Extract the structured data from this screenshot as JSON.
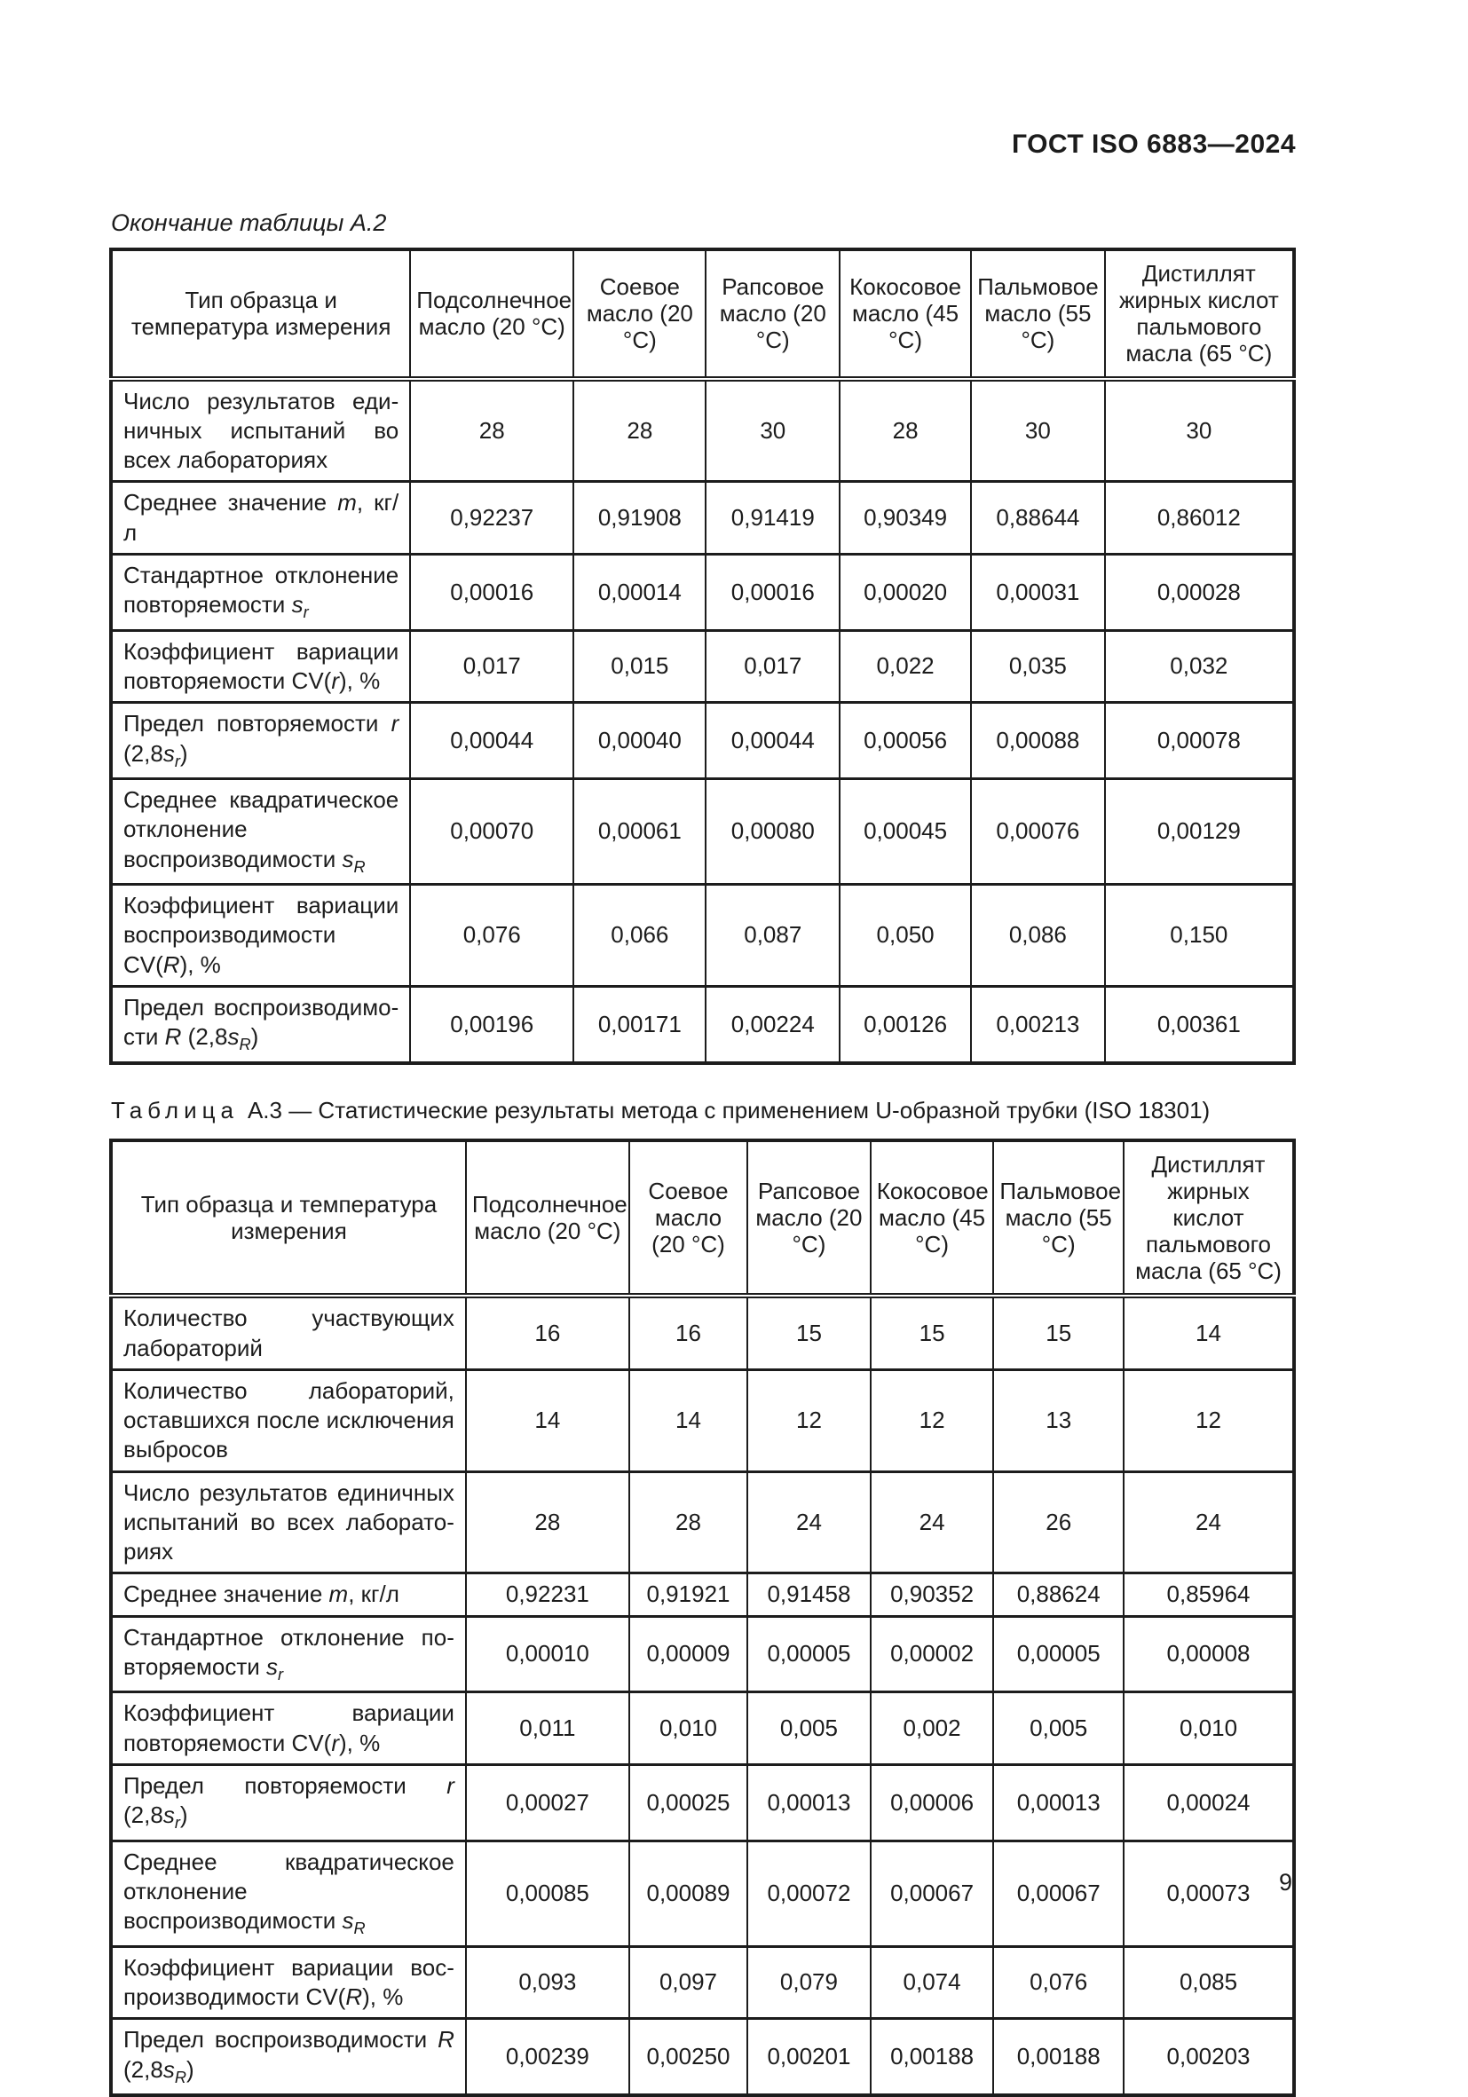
{
  "page": {
    "doc_code": "ГОСТ ISO 6883—2024",
    "page_number": "9"
  },
  "table_a2": {
    "continuation_caption": "Окончание таблицы А.2",
    "columns": [
      "Тип образца и температура измерения",
      "Подсолнечное масло (20 °С)",
      "Соевое масло (20 °С)",
      "Рапсовое масло (20 °С)",
      "Кокосовое масло (45 °С)",
      "Пальмовое масло (55 °С)",
      "Дистиллят жирных кислот пальмового масла (65 °С)"
    ],
    "rows": [
      {
        "label": [
          {
            "t": "Число результатов еди­ничных испытаний во всех лабораториях"
          }
        ],
        "values": [
          "28",
          "28",
          "30",
          "28",
          "30",
          "30"
        ]
      },
      {
        "label": [
          {
            "t": "Среднее значение "
          },
          {
            "t": "m",
            "i": true
          },
          {
            "t": ", кг/л"
          }
        ],
        "values": [
          "0,92237",
          "0,91908",
          "0,91419",
          "0,90349",
          "0,88644",
          "0,86012"
        ]
      },
      {
        "label": [
          {
            "t": "Стандартное отклонение повторяемости "
          },
          {
            "t": "s",
            "i": true
          },
          {
            "t": "r",
            "i": true,
            "sub": true
          }
        ],
        "values": [
          "0,00016",
          "0,00014",
          "0,00016",
          "0,00020",
          "0,00031",
          "0,00028"
        ]
      },
      {
        "label": [
          {
            "t": "Коэффициент вариации повторяемости CV("
          },
          {
            "t": "r",
            "i": true
          },
          {
            "t": "), %"
          }
        ],
        "values": [
          "0,017",
          "0,015",
          "0,017",
          "0,022",
          "0,035",
          "0,032"
        ]
      },
      {
        "label": [
          {
            "t": "Предел повторяемости "
          },
          {
            "t": "r",
            "i": true
          },
          {
            "t": " (2,8"
          },
          {
            "t": "s",
            "i": true
          },
          {
            "t": "r",
            "i": true,
            "sub": true
          },
          {
            "t": ")"
          }
        ],
        "values": [
          "0,00044",
          "0,00040",
          "0,00044",
          "0,00056",
          "0,00088",
          "0,00078"
        ]
      },
      {
        "label": [
          {
            "t": "Среднее квадратическое отклонение воспроизводи­мости "
          },
          {
            "t": "s",
            "i": true
          },
          {
            "t": "R",
            "i": true,
            "sub": true
          }
        ],
        "values": [
          "0,00070",
          "0,00061",
          "0,00080",
          "0,00045",
          "0,00076",
          "0,00129"
        ]
      },
      {
        "label": [
          {
            "t": "Коэффициент вариа­ции воспроизводимости CV("
          },
          {
            "t": "R",
            "i": true
          },
          {
            "t": "), %"
          }
        ],
        "values": [
          "0,076",
          "0,066",
          "0,087",
          "0,050",
          "0,086",
          "0,150"
        ]
      },
      {
        "label": [
          {
            "t": "Предел воспроизводимо­сти "
          },
          {
            "t": "R",
            "i": true
          },
          {
            "t": " (2,8"
          },
          {
            "t": "s",
            "i": true
          },
          {
            "t": "R",
            "i": true,
            "sub": true
          },
          {
            "t": ")"
          }
        ],
        "values": [
          "0,00196",
          "0,00171",
          "0,00224",
          "0,00126",
          "0,00213",
          "0,00361"
        ]
      }
    ]
  },
  "table_a3": {
    "caption_word": "Таблица",
    "caption_rest": "А.3 — Статистические результаты метода с применением U-образной трубки (ISO 18301)",
    "columns": [
      "Тип образца и температура измерения",
      "Подсолнечное масло (20 °С)",
      "Соевое масло (20 °С)",
      "Рапсовое масло (20 °С)",
      "Кокосовое масло (45 °С)",
      "Пальмовое масло (55 °С)",
      "Дистиллят жирных кислот пальмового масла (65 °С)"
    ],
    "rows": [
      {
        "label": [
          {
            "t": "Количество участвующих лабо­раторий"
          }
        ],
        "values": [
          "16",
          "16",
          "15",
          "15",
          "15",
          "14"
        ]
      },
      {
        "label": [
          {
            "t": "Количество лабораторий, оставшихся после исключения выбросов"
          }
        ],
        "values": [
          "14",
          "14",
          "12",
          "12",
          "13",
          "12"
        ]
      },
      {
        "label": [
          {
            "t": "Число результатов единичных испытаний во всех лаборато­риях"
          }
        ],
        "values": [
          "28",
          "28",
          "24",
          "24",
          "26",
          "24"
        ]
      },
      {
        "label": [
          {
            "t": "Среднее значение "
          },
          {
            "t": "m",
            "i": true
          },
          {
            "t": ", кг/л"
          }
        ],
        "values": [
          "0,92231",
          "0,91921",
          "0,91458",
          "0,90352",
          "0,88624",
          "0,85964"
        ]
      },
      {
        "label": [
          {
            "t": "Стандартное отклонение по­вторяемости "
          },
          {
            "t": "s",
            "i": true
          },
          {
            "t": "r",
            "i": true,
            "sub": true
          }
        ],
        "values": [
          "0,00010",
          "0,00009",
          "0,00005",
          "0,00002",
          "0,00005",
          "0,00008"
        ]
      },
      {
        "label": [
          {
            "t": "Коэффициент вариации повто­ряемости CV("
          },
          {
            "t": "r",
            "i": true
          },
          {
            "t": "), %"
          }
        ],
        "values": [
          "0,011",
          "0,010",
          "0,005",
          "0,002",
          "0,005",
          "0,010"
        ]
      },
      {
        "label": [
          {
            "t": "Предел повторяемости "
          },
          {
            "t": "r",
            "i": true
          },
          {
            "t": " (2,8"
          },
          {
            "t": "s",
            "i": true
          },
          {
            "t": "r",
            "i": true,
            "sub": true
          },
          {
            "t": ")"
          }
        ],
        "values": [
          "0,00027",
          "0,00025",
          "0,00013",
          "0,00006",
          "0,00013",
          "0,00024"
        ]
      },
      {
        "label": [
          {
            "t": "Среднее квадратическое откло­нение воспроизводимости "
          },
          {
            "t": "s",
            "i": true
          },
          {
            "t": "R",
            "i": true,
            "sub": true
          }
        ],
        "values": [
          "0,00085",
          "0,00089",
          "0,00072",
          "0,00067",
          "0,00067",
          "0,00073"
        ]
      },
      {
        "label": [
          {
            "t": "Коэффициент вариации вос­производимости CV("
          },
          {
            "t": "R",
            "i": true
          },
          {
            "t": "), %"
          }
        ],
        "values": [
          "0,093",
          "0,097",
          "0,079",
          "0,074",
          "0,076",
          "0,085"
        ]
      },
      {
        "label": [
          {
            "t": "Предел воспроизводимости "
          },
          {
            "t": "R",
            "i": true
          },
          {
            "t": " (2,8"
          },
          {
            "t": "s",
            "i": true
          },
          {
            "t": "R",
            "i": true,
            "sub": true
          },
          {
            "t": ")"
          }
        ],
        "values": [
          "0,00239",
          "0,00250",
          "0,00201",
          "0,00188",
          "0,00188",
          "0,00203"
        ]
      }
    ]
  }
}
